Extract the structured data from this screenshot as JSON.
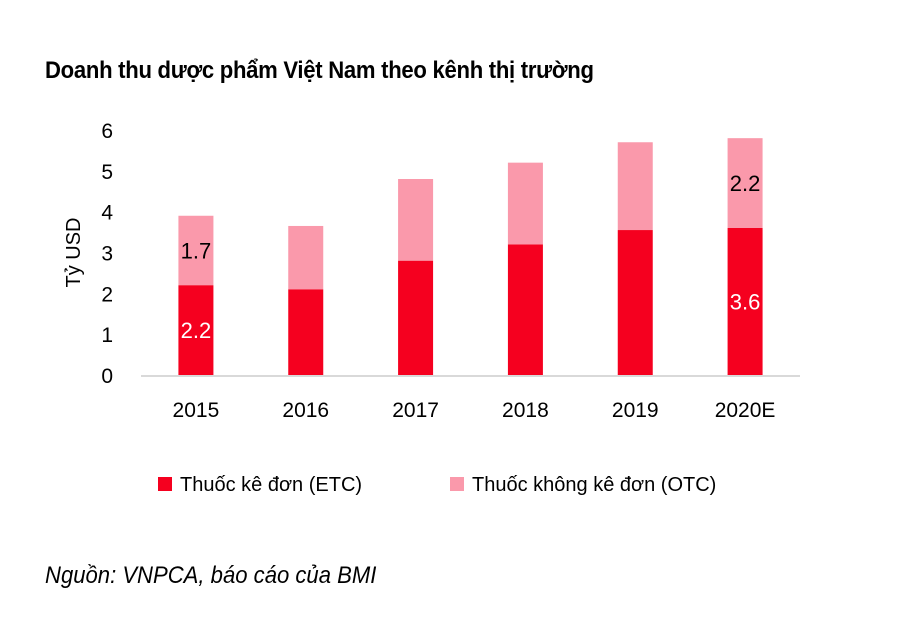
{
  "title": "Doanh thu dược phẩm Việt Nam theo kênh thị trường",
  "source": "Nguồn: VNPCA, báo cáo của BMI",
  "chart_data": {
    "type": "bar",
    "stacked": true,
    "title": "Doanh thu dược phẩm Việt Nam theo kênh thị trường",
    "xlabel": "",
    "ylabel": "Tỷ USD",
    "ylim": [
      0,
      6
    ],
    "yticks": [
      "0",
      "1",
      "2",
      "3",
      "4",
      "5",
      "6"
    ],
    "grid": false,
    "legend_position": "bottom",
    "categories": [
      "2015",
      "2016",
      "2017",
      "2018",
      "2019",
      "2020E"
    ],
    "series": [
      {
        "name": "Thuốc kê đơn (ETC)",
        "color": "#f5001f",
        "values": [
          2.2,
          2.1,
          2.8,
          3.2,
          3.55,
          3.6
        ],
        "labels": [
          "2.2",
          null,
          null,
          null,
          null,
          "3.6"
        ]
      },
      {
        "name": "Thuốc không kê đơn (OTC)",
        "color": "#fa99ab",
        "values": [
          1.7,
          1.55,
          2.0,
          2.0,
          2.15,
          2.2
        ],
        "labels": [
          "1.7",
          null,
          null,
          null,
          null,
          "2.2"
        ]
      }
    ]
  }
}
